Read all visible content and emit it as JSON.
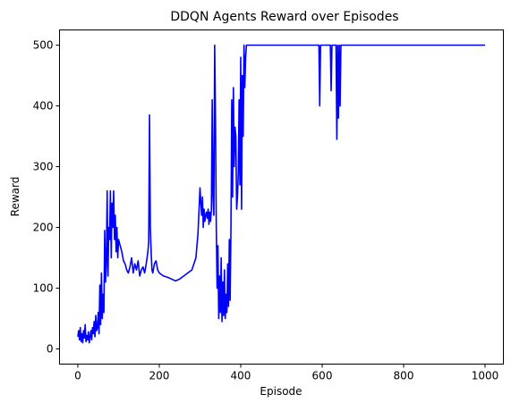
{
  "chart_data": {
    "type": "line",
    "title": "DDQN Agents Reward over Episodes",
    "xlabel": "Episode",
    "ylabel": "Reward",
    "xlim": [
      -45,
      1045
    ],
    "ylim": [
      -25,
      525
    ],
    "xticks": [
      0,
      200,
      400,
      600,
      800,
      1000
    ],
    "yticks": [
      0,
      100,
      200,
      300,
      400,
      500
    ],
    "grid": false,
    "legend": "none",
    "series": [
      {
        "color": "#0000ff",
        "x": [
          0,
          2,
          4,
          6,
          8,
          10,
          12,
          14,
          16,
          18,
          20,
          22,
          24,
          26,
          28,
          30,
          32,
          34,
          36,
          38,
          40,
          42,
          44,
          46,
          48,
          50,
          52,
          54,
          56,
          58,
          60,
          62,
          64,
          66,
          68,
          70,
          72,
          74,
          76,
          78,
          80,
          82,
          84,
          86,
          88,
          90,
          92,
          94,
          96,
          98,
          100,
          104,
          108,
          112,
          116,
          120,
          124,
          128,
          132,
          136,
          140,
          144,
          148,
          152,
          156,
          160,
          164,
          168,
          170,
          172,
          174,
          176,
          178,
          180,
          182,
          184,
          188,
          192,
          196,
          200,
          210,
          220,
          230,
          240,
          250,
          260,
          270,
          280,
          290,
          295,
          300,
          302,
          304,
          306,
          308,
          310,
          312,
          314,
          316,
          318,
          320,
          322,
          324,
          326,
          328,
          330,
          332,
          334,
          336,
          338,
          340,
          342,
          344,
          346,
          348,
          350,
          352,
          354,
          356,
          358,
          360,
          362,
          364,
          366,
          368,
          370,
          372,
          374,
          376,
          378,
          380,
          382,
          384,
          386,
          388,
          390,
          392,
          394,
          396,
          398,
          400,
          402,
          404,
          406,
          408,
          410,
          412,
          414,
          416,
          420,
          450,
          500,
          550,
          590,
          592,
          594,
          596,
          600,
          615,
          618,
          620,
          622,
          624,
          630,
          632,
          634,
          636,
          638,
          640,
          642,
          644,
          646,
          650,
          700,
          800,
          900,
          1000
        ],
        "y": [
          20,
          30,
          15,
          35,
          12,
          25,
          10,
          30,
          18,
          40,
          12,
          22,
          15,
          28,
          10,
          20,
          30,
          15,
          35,
          25,
          45,
          20,
          55,
          30,
          35,
          60,
          25,
          105,
          40,
          125,
          50,
          90,
          60,
          195,
          110,
          140,
          260,
          120,
          200,
          180,
          260,
          150,
          240,
          200,
          260,
          180,
          220,
          160,
          200,
          150,
          180,
          170,
          160,
          145,
          140,
          130,
          125,
          135,
          150,
          125,
          140,
          130,
          145,
          120,
          130,
          135,
          125,
          140,
          150,
          160,
          175,
          385,
          200,
          160,
          130,
          125,
          140,
          145,
          130,
          125,
          120,
          118,
          115,
          112,
          115,
          120,
          125,
          130,
          150,
          190,
          265,
          240,
          220,
          250,
          200,
          230,
          210,
          220,
          225,
          215,
          230,
          205,
          225,
          210,
          230,
          410,
          250,
          220,
          500,
          380,
          200,
          100,
          170,
          50,
          120,
          60,
          150,
          45,
          110,
          55,
          130,
          50,
          90,
          60,
          140,
          70,
          180,
          80,
          200,
          410,
          250,
          430,
          300,
          365,
          350,
          230,
          250,
          290,
          410,
          270,
          480,
          230,
          450,
          350,
          500,
          430,
          480,
          500,
          500,
          500,
          500,
          500,
          500,
          500,
          500,
          400,
          500,
          500,
          500,
          500,
          500,
          425,
          500,
          500,
          500,
          500,
          345,
          500,
          380,
          500,
          400,
          500,
          500,
          500,
          500,
          500,
          500
        ]
      }
    ]
  }
}
